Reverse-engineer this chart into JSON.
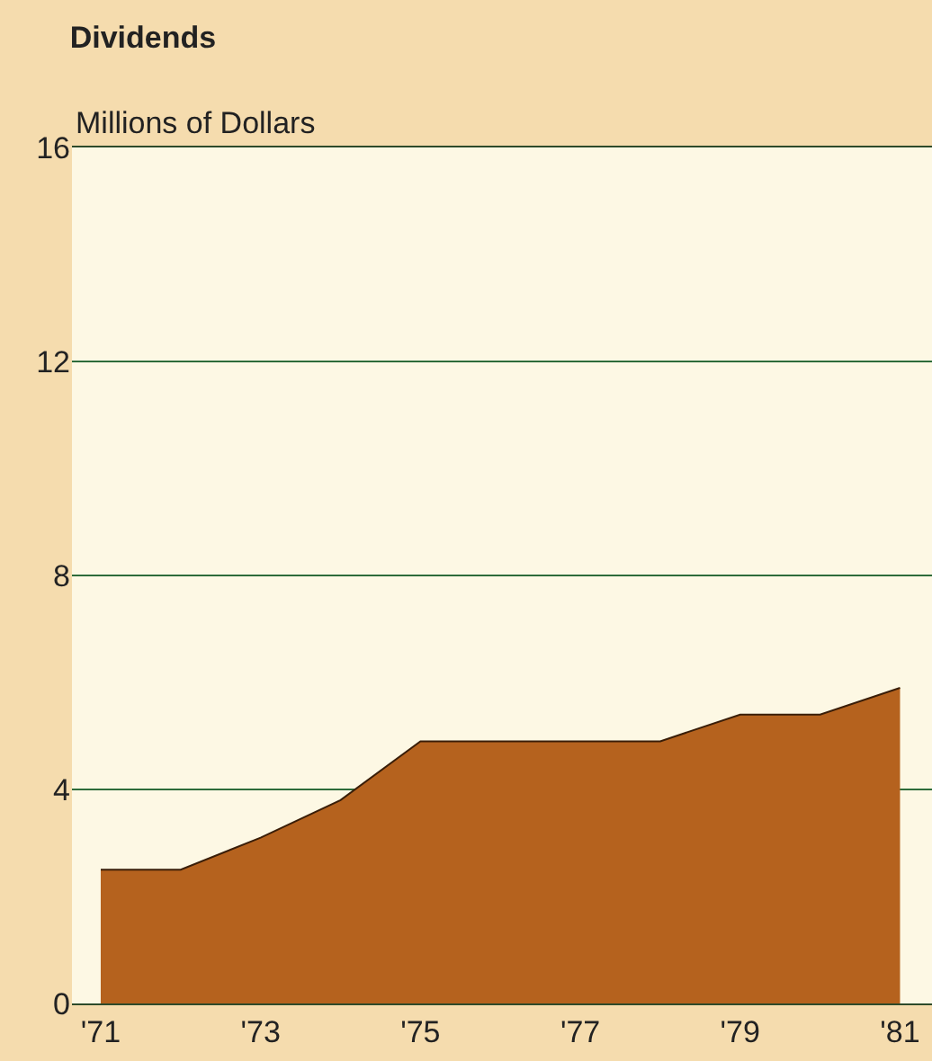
{
  "chart_data": {
    "type": "area",
    "title": "Dividends",
    "ylabel": "Millions of Dollars",
    "categories": [
      "'71",
      null,
      "'73",
      null,
      "'75",
      null,
      "'77",
      null,
      "'79",
      null,
      "'81"
    ],
    "series": [
      {
        "color": "#b5621e",
        "values": [
          2.5,
          2.5,
          3.1,
          3.8,
          4.9,
          4.9,
          4.9,
          4.9,
          5.4,
          5.4,
          5.9
        ]
      }
    ],
    "ylim": [
      0,
      16
    ],
    "yticks": [
      0,
      4,
      8,
      12,
      16
    ],
    "grid": "y"
  }
}
